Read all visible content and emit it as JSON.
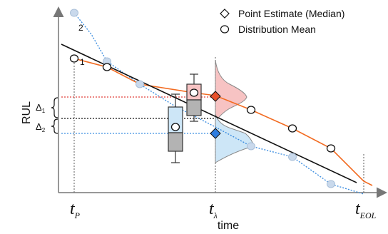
{
  "axes": {
    "ylabel": "RUL",
    "xlabel": "time"
  },
  "legend": {
    "items": [
      {
        "symbol": "diamond",
        "label": "Point Estimate (Median)"
      },
      {
        "symbol": "circle",
        "label": "Distribution Mean"
      }
    ]
  },
  "time_marks": {
    "tp": {
      "main": "t",
      "sub": "P"
    },
    "tl": {
      "main": "t",
      "sub": "λ"
    },
    "teol": {
      "main": "t",
      "sub": "EOL"
    }
  },
  "deltas": [
    {
      "main": "Δ",
      "sub": "1"
    },
    {
      "main": "Δ",
      "sub": "2"
    }
  ],
  "point_labels": {
    "first": "1",
    "second": "2"
  },
  "colors": {
    "orange": "#f26b21",
    "blue": "#2e75c6",
    "red_dotted": "#e0413a",
    "blue_dotted": "#3f8fe0",
    "pink_fill": "#f7c3c3",
    "lightblue_fill": "#cde6f7",
    "diamond_red": "#e8502a",
    "diamond_blue": "#2e7de0",
    "grey_box": "#b3b3b3",
    "marker_blue": "#c9d9ec"
  }
}
